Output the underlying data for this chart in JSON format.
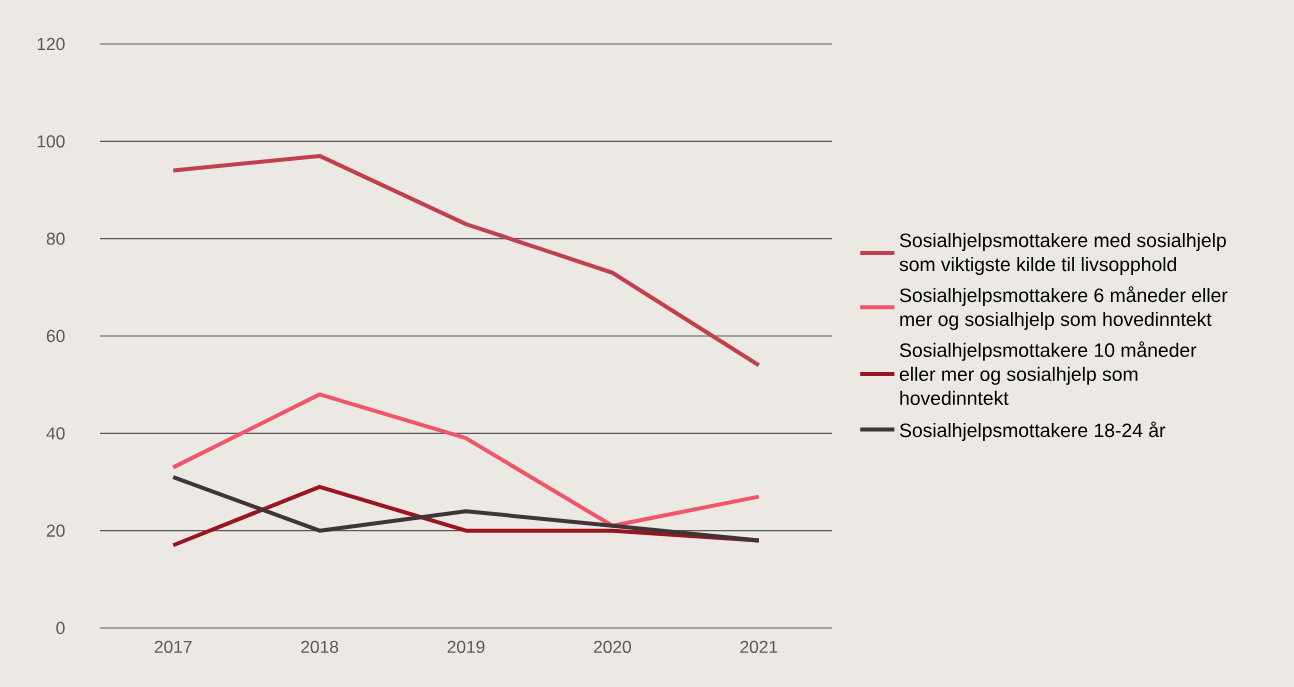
{
  "chart_data": {
    "type": "line",
    "categories": [
      "2017",
      "2018",
      "2019",
      "2020",
      "2021"
    ],
    "series": [
      {
        "name": "Sosialhjelpsmottakere med sosialhjelp som viktigste kilde til livsopphold",
        "color": "#c0414d",
        "values": [
          94,
          97,
          83,
          73,
          54
        ]
      },
      {
        "name": "Sosialhjelpsmottakere 6 måneder eller mer og sosialhjelp som hovedinntekt",
        "color": "#f0566a",
        "values": [
          33,
          48,
          39,
          21,
          27
        ]
      },
      {
        "name": "Sosialhjelpsmottakere 10 måneder eller mer og sosialhjelp som hovedinntekt",
        "color": "#9a1421",
        "values": [
          17,
          29,
          20,
          20,
          18
        ]
      },
      {
        "name": "Sosialhjelpsmottakere 18-24 år",
        "color": "#3f3436",
        "values": [
          31,
          20,
          24,
          21,
          18
        ]
      }
    ],
    "ylim": [
      0,
      120
    ],
    "yticks": [
      0,
      20,
      40,
      60,
      80,
      100,
      120
    ],
    "grid": "y",
    "legend": "right",
    "marker": "none",
    "line_style": "solid"
  }
}
